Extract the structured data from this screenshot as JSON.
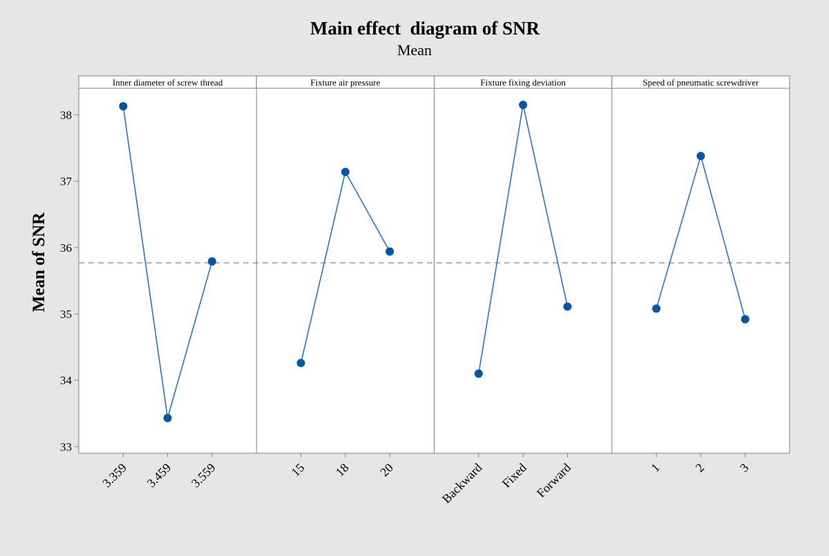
{
  "chart_data": {
    "type": "line",
    "title": "Main effect  diagram of SNR",
    "subtitle": "Mean",
    "ylabel": "Mean of SNR",
    "ylim": [
      32.9,
      38.4
    ],
    "yticks": [
      33,
      34,
      35,
      36,
      37,
      38
    ],
    "reference_line": 35.77,
    "marker_color": "#0654a6",
    "line_color": "#2b73c2",
    "panels": [
      {
        "name": "Inner diameter of screw thread",
        "categories": [
          "3.359",
          "3.459",
          "3.559"
        ],
        "values": [
          38.13,
          33.43,
          35.79
        ]
      },
      {
        "name": "Fixture air pressure",
        "categories": [
          "15",
          "18",
          "20"
        ],
        "values": [
          34.26,
          37.14,
          35.94
        ]
      },
      {
        "name": "Fixture fixing deviation",
        "categories": [
          "Backward",
          "Fixed",
          "Forward"
        ],
        "values": [
          34.1,
          38.15,
          35.11
        ]
      },
      {
        "name": "Speed of pneumatic screwdriver",
        "categories": [
          "1",
          "2",
          "3"
        ],
        "values": [
          35.08,
          37.38,
          34.92
        ]
      }
    ]
  }
}
